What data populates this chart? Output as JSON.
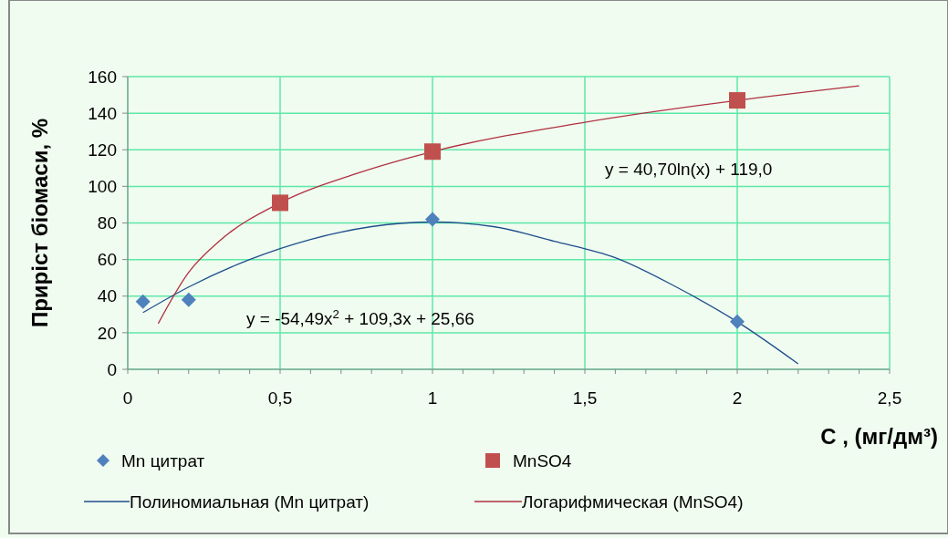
{
  "chart_data": {
    "type": "scatter",
    "xlabel": "C , (мг/дм³)",
    "ylabel": "Приріст біомаси, %",
    "xlim": [
      0,
      2.5
    ],
    "xticks": [
      0,
      {
        "value": 0.5,
        "label": "0,5"
      },
      1,
      {
        "value": 1.5,
        "label": "1,5"
      },
      2,
      {
        "value": 2.5,
        "label": "2,5"
      }
    ],
    "ylim": [
      0,
      160
    ],
    "yticks": [
      0,
      20,
      40,
      60,
      80,
      100,
      120,
      140,
      160
    ],
    "grid": true,
    "legend": "bottom",
    "series": [
      {
        "name": "Mn цитрат",
        "marker": "diamond",
        "color": "#4f81bd",
        "x": [
          0.05,
          0.2,
          1,
          2
        ],
        "values": [
          37,
          38,
          82,
          26
        ]
      },
      {
        "name": "MnSO4",
        "marker": "square",
        "color": "#c0504d",
        "x": [
          0.5,
          1,
          2
        ],
        "values": [
          91,
          119,
          147
        ]
      },
      {
        "name": "Полиномиальная (Mn цитрат)",
        "type": "line",
        "marker": "none",
        "color": "#1f4e8c",
        "x": [
          0.05,
          0.2,
          0.4,
          0.6,
          0.8,
          1,
          1.2,
          1.4,
          1.6,
          1.8,
          2,
          2.2
        ],
        "values": [
          31,
          45,
          60,
          71,
          78,
          80.5,
          78,
          70,
          61,
          45,
          26,
          3
        ]
      },
      {
        "name": "Логарифмическая (MnSO4)",
        "type": "line",
        "marker": "none",
        "color": "#b03040",
        "x": [
          0.1,
          0.2,
          0.3,
          0.5,
          0.75,
          1,
          1.5,
          2,
          2.4
        ],
        "values": [
          25,
          53,
          70,
          91,
          107,
          119,
          135,
          147,
          155
        ]
      }
    ],
    "annotations": [
      "y = -54,49x$^{2}$ + 109,3x + 25,66",
      "y = 40,70ln(x) + 119,0"
    ]
  }
}
